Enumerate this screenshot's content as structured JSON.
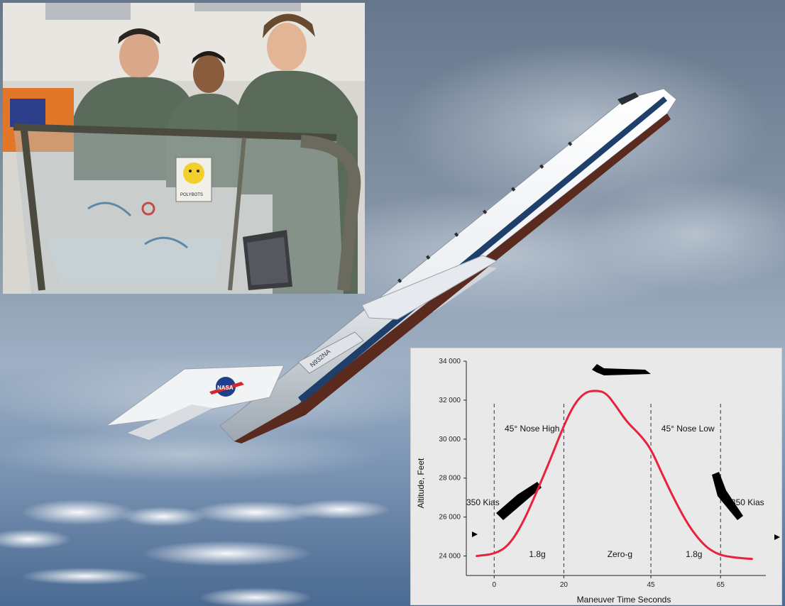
{
  "photo": {
    "aircraft": {
      "registration": "N932NA",
      "tail_logo": "NASA"
    },
    "crew_inset": {
      "sign_text": "POLYBOTS"
    }
  },
  "chart_data": {
    "type": "line",
    "xlabel": "Maneuver Time Seconds",
    "ylabel": "Altitude, Feet",
    "xlim": [
      -8,
      78
    ],
    "ylim": [
      23000,
      34000
    ],
    "x_ticks": [
      {
        "value": 0,
        "label": "0"
      },
      {
        "value": 20,
        "label": "20"
      },
      {
        "value": 45,
        "label": "45"
      },
      {
        "value": 65,
        "label": "65"
      }
    ],
    "y_ticks": [
      {
        "value": 24000,
        "label": "24 000"
      },
      {
        "value": 26000,
        "label": "26 000"
      },
      {
        "value": 28000,
        "label": "28 000"
      },
      {
        "value": 30000,
        "label": "30 000"
      },
      {
        "value": 32000,
        "label": "32 000"
      },
      {
        "value": 34000,
        "label": "34 000"
      }
    ],
    "series": [
      {
        "color": "#e8213c",
        "x": [
          -5,
          0,
          4,
          8,
          12,
          16,
          20,
          23,
          26,
          29,
          32,
          35,
          38,
          42,
          45,
          48,
          52,
          56,
          60,
          63,
          66,
          70,
          74
        ],
        "y": [
          24000,
          24100,
          24500,
          25600,
          27200,
          28900,
          30700,
          31800,
          32400,
          32500,
          32400,
          31700,
          30900,
          30200,
          29500,
          28300,
          26800,
          25500,
          24600,
          24200,
          24000,
          23900,
          23850
        ]
      }
    ],
    "vlines": [
      0,
      20,
      45,
      65
    ],
    "annotations": [
      {
        "text": "350 Kias",
        "x": -8,
        "y": 26600
      },
      {
        "text": "45° Nose High",
        "x": 3,
        "y": 30400
      },
      {
        "text": "45° Nose Low",
        "x": 48,
        "y": 30400
      },
      {
        "text": "350 Kias",
        "x": 68,
        "y": 26600
      },
      {
        "text": "1.8g",
        "x": 10,
        "y": 23950
      },
      {
        "text": "Zero-g",
        "x": 32.5,
        "y": 23950
      },
      {
        "text": "1.8g",
        "x": 55,
        "y": 23950
      }
    ],
    "grid": false
  }
}
